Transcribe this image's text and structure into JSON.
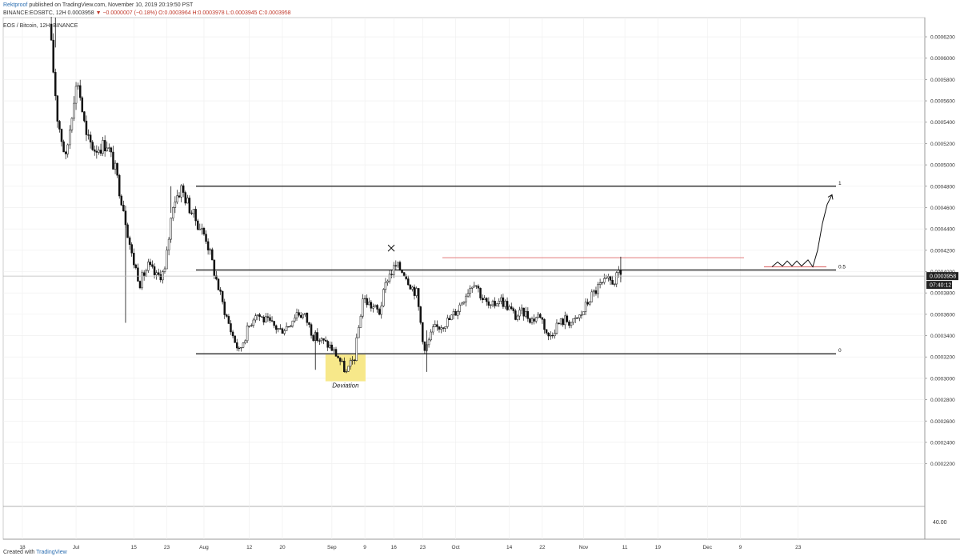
{
  "header": {
    "author": "Rektproof",
    "published_text": "published on TradingView.com, November 10, 2019 20:19:50 PST",
    "symbol_prefix": "BINANCE:EOSBTC, 12H",
    "price": "0.0003958",
    "change": "▼ −0.0000007 (−0.18%)",
    "ohlc": "O:0.0003964 H:0.0003978 L:0.0003945 C:0.0003958",
    "legend": "EOS / Bitcoin, 12H, BINANCE"
  },
  "footer": {
    "created_with": "Created with",
    "brand": "TradingView"
  },
  "chart_data": {
    "type": "candlestick",
    "title": "EOS / Bitcoin, 12H, BINANCE",
    "ylim": [
      0.00018,
      0.000638
    ],
    "y_ticks": [
      "0.0006200",
      "0.0006000",
      "0.0005800",
      "0.0005600",
      "0.0005400",
      "0.0005200",
      "0.0005000",
      "0.0004800",
      "0.0004600",
      "0.0004400",
      "0.0004200",
      "0.0004000",
      "0.0003800",
      "0.0003600",
      "0.0003400",
      "0.0003200",
      "0.0003000",
      "0.0002800",
      "0.0002600",
      "0.0002400",
      "0.0002200"
    ],
    "x_tick_labels": [
      "18",
      "Jul",
      "15",
      "23",
      "Aug",
      "12",
      "20",
      "Sep",
      "9",
      "16",
      "23",
      "Oct",
      "14",
      "22",
      "Nov",
      "11",
      "19",
      "Dec",
      "9",
      "23"
    ],
    "price_series": [
      [
        "2019-06-25",
        0.000632
      ],
      [
        "2019-06-27",
        0.000545
      ],
      [
        "2019-06-29",
        0.000505
      ],
      [
        "2019-07-01",
        0.000565
      ],
      [
        "2019-07-02",
        0.000578
      ],
      [
        "2019-07-04",
        0.000525
      ],
      [
        "2019-07-06",
        0.000515
      ],
      [
        "2019-07-09",
        0.00052
      ],
      [
        "2019-07-11",
        0.000495
      ],
      [
        "2019-07-13",
        0.00046
      ],
      [
        "2019-07-15",
        0.000415
      ],
      [
        "2019-07-17",
        0.00039
      ],
      [
        "2019-07-19",
        0.000405
      ],
      [
        "2019-07-21",
        0.000395
      ],
      [
        "2019-07-23",
        0.0004
      ],
      [
        "2019-07-25",
        0.000465
      ],
      [
        "2019-07-27",
        0.000478
      ],
      [
        "2019-07-29",
        0.00046
      ],
      [
        "2019-07-31",
        0.000445
      ],
      [
        "2019-08-02",
        0.000432
      ],
      [
        "2019-08-04",
        0.0004
      ],
      [
        "2019-08-06",
        0.00037
      ],
      [
        "2019-08-08",
        0.000345
      ],
      [
        "2019-08-10",
        0.000325
      ],
      [
        "2019-08-12",
        0.000345
      ],
      [
        "2019-08-14",
        0.000362
      ],
      [
        "2019-08-16",
        0.000355
      ],
      [
        "2019-08-18",
        0.00035
      ],
      [
        "2019-08-20",
        0.000345
      ],
      [
        "2019-08-22",
        0.00035
      ],
      [
        "2019-08-24",
        0.000362
      ],
      [
        "2019-08-26",
        0.000358
      ],
      [
        "2019-08-28",
        0.00034
      ],
      [
        "2019-08-30",
        0.000335
      ],
      [
        "2019-09-01",
        0.00033
      ],
      [
        "2019-09-03",
        0.00032
      ],
      [
        "2019-09-05",
        0.000305
      ],
      [
        "2019-09-07",
        0.00032
      ],
      [
        "2019-09-09",
        0.000375
      ],
      [
        "2019-09-11",
        0.000368
      ],
      [
        "2019-09-13",
        0.000362
      ],
      [
        "2019-09-15",
        0.000395
      ],
      [
        "2019-09-17",
        0.000405
      ],
      [
        "2019-09-19",
        0.0004
      ],
      [
        "2019-09-21",
        0.000385
      ],
      [
        "2019-09-22",
        0.00038
      ],
      [
        "2019-09-24",
        0.000325
      ],
      [
        "2019-09-26",
        0.000345
      ],
      [
        "2019-09-28",
        0.00035
      ],
      [
        "2019-09-30",
        0.000355
      ],
      [
        "2019-10-02",
        0.000365
      ],
      [
        "2019-10-04",
        0.00038
      ],
      [
        "2019-10-06",
        0.000392
      ],
      [
        "2019-10-08",
        0.000375
      ],
      [
        "2019-10-10",
        0.000365
      ],
      [
        "2019-10-12",
        0.000375
      ],
      [
        "2019-10-14",
        0.000368
      ],
      [
        "2019-10-16",
        0.000358
      ],
      [
        "2019-10-18",
        0.000362
      ],
      [
        "2019-10-20",
        0.000355
      ],
      [
        "2019-10-22",
        0.00036
      ],
      [
        "2019-10-24",
        0.000338
      ],
      [
        "2019-10-26",
        0.00035
      ],
      [
        "2019-10-28",
        0.000355
      ],
      [
        "2019-10-30",
        0.000352
      ],
      [
        "2019-11-01",
        0.00036
      ],
      [
        "2019-11-03",
        0.000375
      ],
      [
        "2019-11-05",
        0.000385
      ],
      [
        "2019-11-07",
        0.00039
      ],
      [
        "2019-11-09",
        0.000392
      ],
      [
        "2019-11-10",
        0.000396
      ]
    ],
    "levels": [
      {
        "label": "1",
        "price": 0.00048
      },
      {
        "label": "0.5",
        "price": 0.0004015
      },
      {
        "label": "0",
        "price": 0.000323
      }
    ],
    "resistance_price": 0.000413,
    "current_price_label": "0.0003958",
    "countdown_label": "07:40:12",
    "annotation": "Deviation",
    "bottom_axis_value": "40.00",
    "colors": {
      "candles": "#111111",
      "red_line": "#e07a7a",
      "highlight": "#f7e88a",
      "grid": "#eeeeee"
    }
  }
}
